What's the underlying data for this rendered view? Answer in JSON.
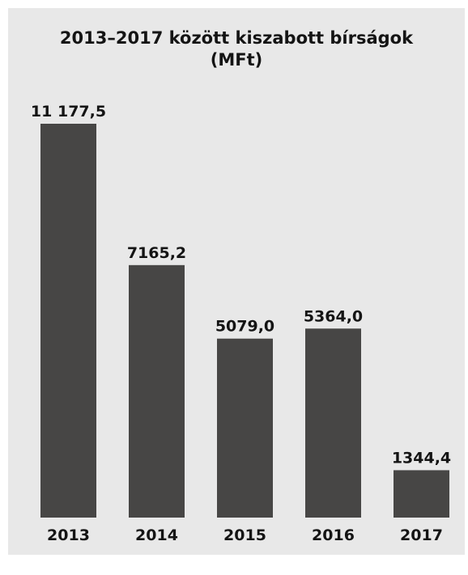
{
  "chart_data": {
    "type": "bar",
    "title_line1": "2013–2017 között kiszabott bírságok",
    "title_line2": "(MFt)",
    "categories": [
      "2013",
      "2014",
      "2015",
      "2016",
      "2017"
    ],
    "values": [
      11177.5,
      7165.2,
      5079.0,
      5364.0,
      1344.4
    ],
    "value_labels": [
      "11 177,5",
      "7165,2",
      "5079,0",
      "5364,0",
      "1344,4"
    ],
    "xlabel": "",
    "ylabel": "",
    "ylim": [
      0,
      11177.5
    ],
    "grid": false,
    "legend": "none",
    "colors": {
      "bar": "#474645",
      "panel_background": "#e8e8e8",
      "text": "#141414"
    }
  }
}
